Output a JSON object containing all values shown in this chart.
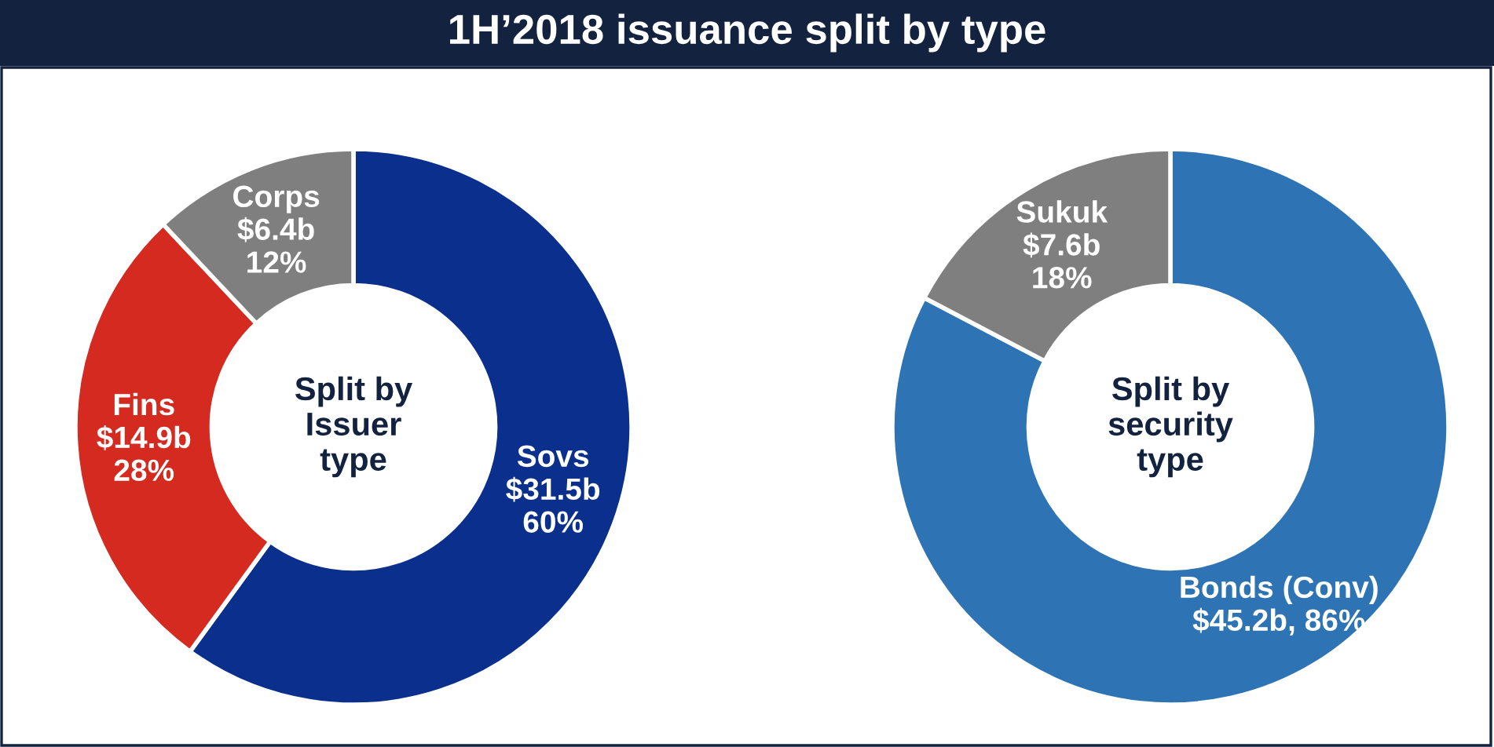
{
  "chart_data": [
    {
      "type": "donut",
      "title": "1H’2018 issuance split by type",
      "categories": [
        "Sovs",
        "Fins",
        "Corps"
      ],
      "values": [
        60,
        28,
        12
      ],
      "value_labels": [
        "$31.5b\n60%",
        "$14.9b\n28%",
        "$6.4b\n12%"
      ],
      "colors": [
        "#0a2f8c",
        "#d42a1f",
        "#7f7f7f"
      ],
      "annotations": [
        "Split by\nIssuer\ntype"
      ]
    },
    {
      "type": "donut",
      "categories": [
        "Bonds (Conv)",
        "Sukuk"
      ],
      "values": [
        86,
        18
      ],
      "value_labels": [
        "$45.2b, 86%",
        "$7.6b\n18%"
      ],
      "colors": [
        "#2e74b5",
        "#7f7f7f"
      ],
      "annotations": [
        "Split by\nsecurity\ntype"
      ]
    }
  ]
}
